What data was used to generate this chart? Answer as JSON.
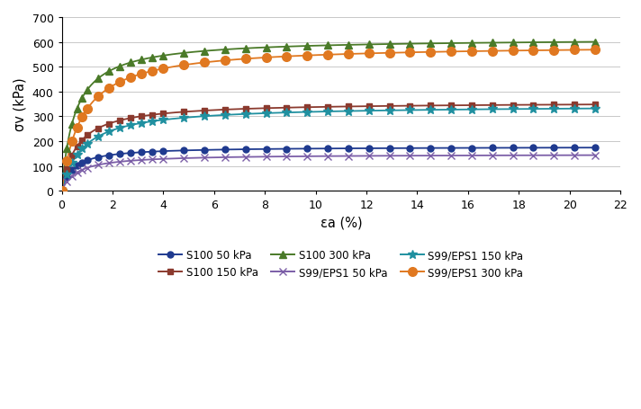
{
  "xlabel": "εa (%)",
  "ylabel": "σv (kPa)",
  "xlim": [
    0,
    22
  ],
  "ylim": [
    0,
    700
  ],
  "xticks": [
    0,
    2,
    4,
    6,
    8,
    10,
    12,
    14,
    16,
    18,
    20,
    22
  ],
  "yticks": [
    0,
    100,
    200,
    300,
    400,
    500,
    600,
    700
  ],
  "series": [
    {
      "label": "S100 50 kPa",
      "color": "#1F3A8F",
      "marker": "o",
      "ms": 5,
      "asym": 178,
      "k": 400
    },
    {
      "label": "S100 150 kPa",
      "color": "#8B3A2E",
      "marker": "s",
      "ms": 5,
      "asym": 358,
      "k": 600
    },
    {
      "label": "S100 300 kPa",
      "color": "#4A7A28",
      "marker": "^",
      "ms": 6,
      "asym": 615,
      "k": 1200
    },
    {
      "label": "S99/EPS1 50 kPa",
      "color": "#7B5EA7",
      "marker": "x",
      "ms": 6,
      "asym": 148,
      "k": 250
    },
    {
      "label": "S99/EPS1 150 kPa",
      "color": "#2090A0",
      "marker": "*",
      "ms": 7,
      "asym": 345,
      "k": 420
    },
    {
      "label": "S99/EPS1 300 kPa",
      "color": "#E07820",
      "marker": "o",
      "ms": 7,
      "asym": 590,
      "k": 750
    }
  ],
  "background_color": "#FFFFFF"
}
